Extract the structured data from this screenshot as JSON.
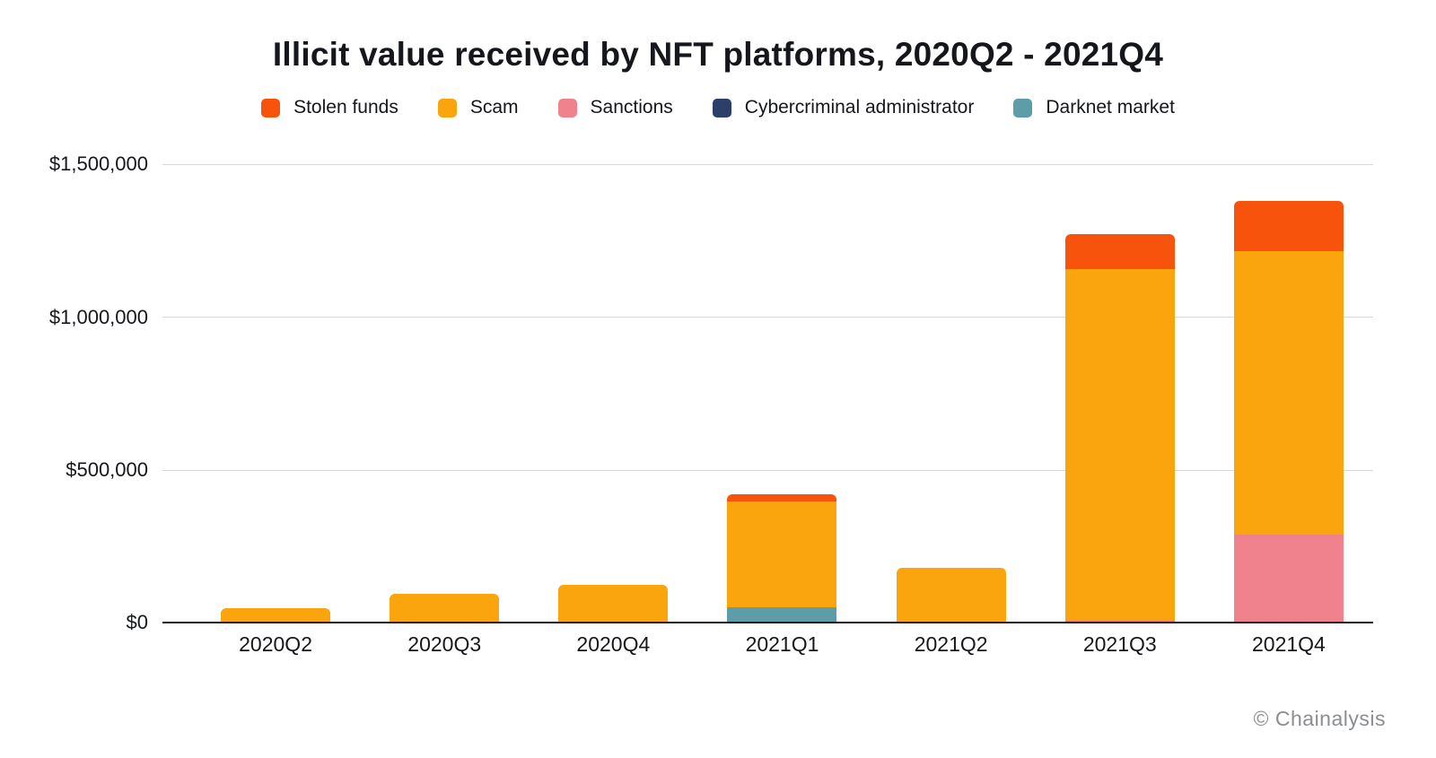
{
  "page": {
    "title": "Illicit value received by NFT platforms, 2020Q2 - 2021Q4",
    "attribution": "© Chainalysis"
  },
  "chart_data": {
    "type": "bar",
    "stacked": true,
    "title": "Illicit value received by NFT platforms, 2020Q2 - 2021Q4",
    "categories": [
      "2020Q2",
      "2020Q3",
      "2020Q4",
      "2021Q1",
      "2021Q2",
      "2021Q3",
      "2021Q4"
    ],
    "series": [
      {
        "name": "Stolen funds",
        "color": "#F8530D",
        "values": [
          0,
          0,
          0,
          22000,
          0,
          115000,
          165000
        ]
      },
      {
        "name": "Scam",
        "color": "#FAA40E",
        "values": [
          45000,
          90000,
          120000,
          345000,
          175000,
          1145000,
          925000
        ]
      },
      {
        "name": "Sanctions",
        "color": "#F0828E",
        "values": [
          0,
          0,
          0,
          0,
          0,
          7000,
          285000
        ]
      },
      {
        "name": "Cybercriminal administrator",
        "color": "#2D3E6B",
        "values": [
          0,
          0,
          0,
          0,
          0,
          0,
          0
        ]
      },
      {
        "name": "Darknet market",
        "color": "#5C9DA8",
        "values": [
          0,
          0,
          0,
          48000,
          0,
          0,
          0
        ]
      }
    ],
    "stack_order_bottom_to_top": [
      "Darknet market",
      "Sanctions",
      "Cybercriminal administrator",
      "Scam",
      "Stolen funds"
    ],
    "xlabel": "",
    "ylabel": "",
    "ylim": [
      0,
      1500000
    ],
    "yticks": [
      {
        "label": "$0",
        "value": 0
      },
      {
        "label": "$500,000",
        "value": 500000
      },
      {
        "label": "$1,000,000",
        "value": 1000000
      },
      {
        "label": "$1,500,000",
        "value": 1500000
      }
    ],
    "legend_position": "top",
    "grid": "horizontal",
    "colors": {
      "text": "#15171c",
      "gridline": "#d8d8d8",
      "axis": "#17191e",
      "attribution_text": "#8b8e92",
      "background": "#ffffff"
    }
  }
}
